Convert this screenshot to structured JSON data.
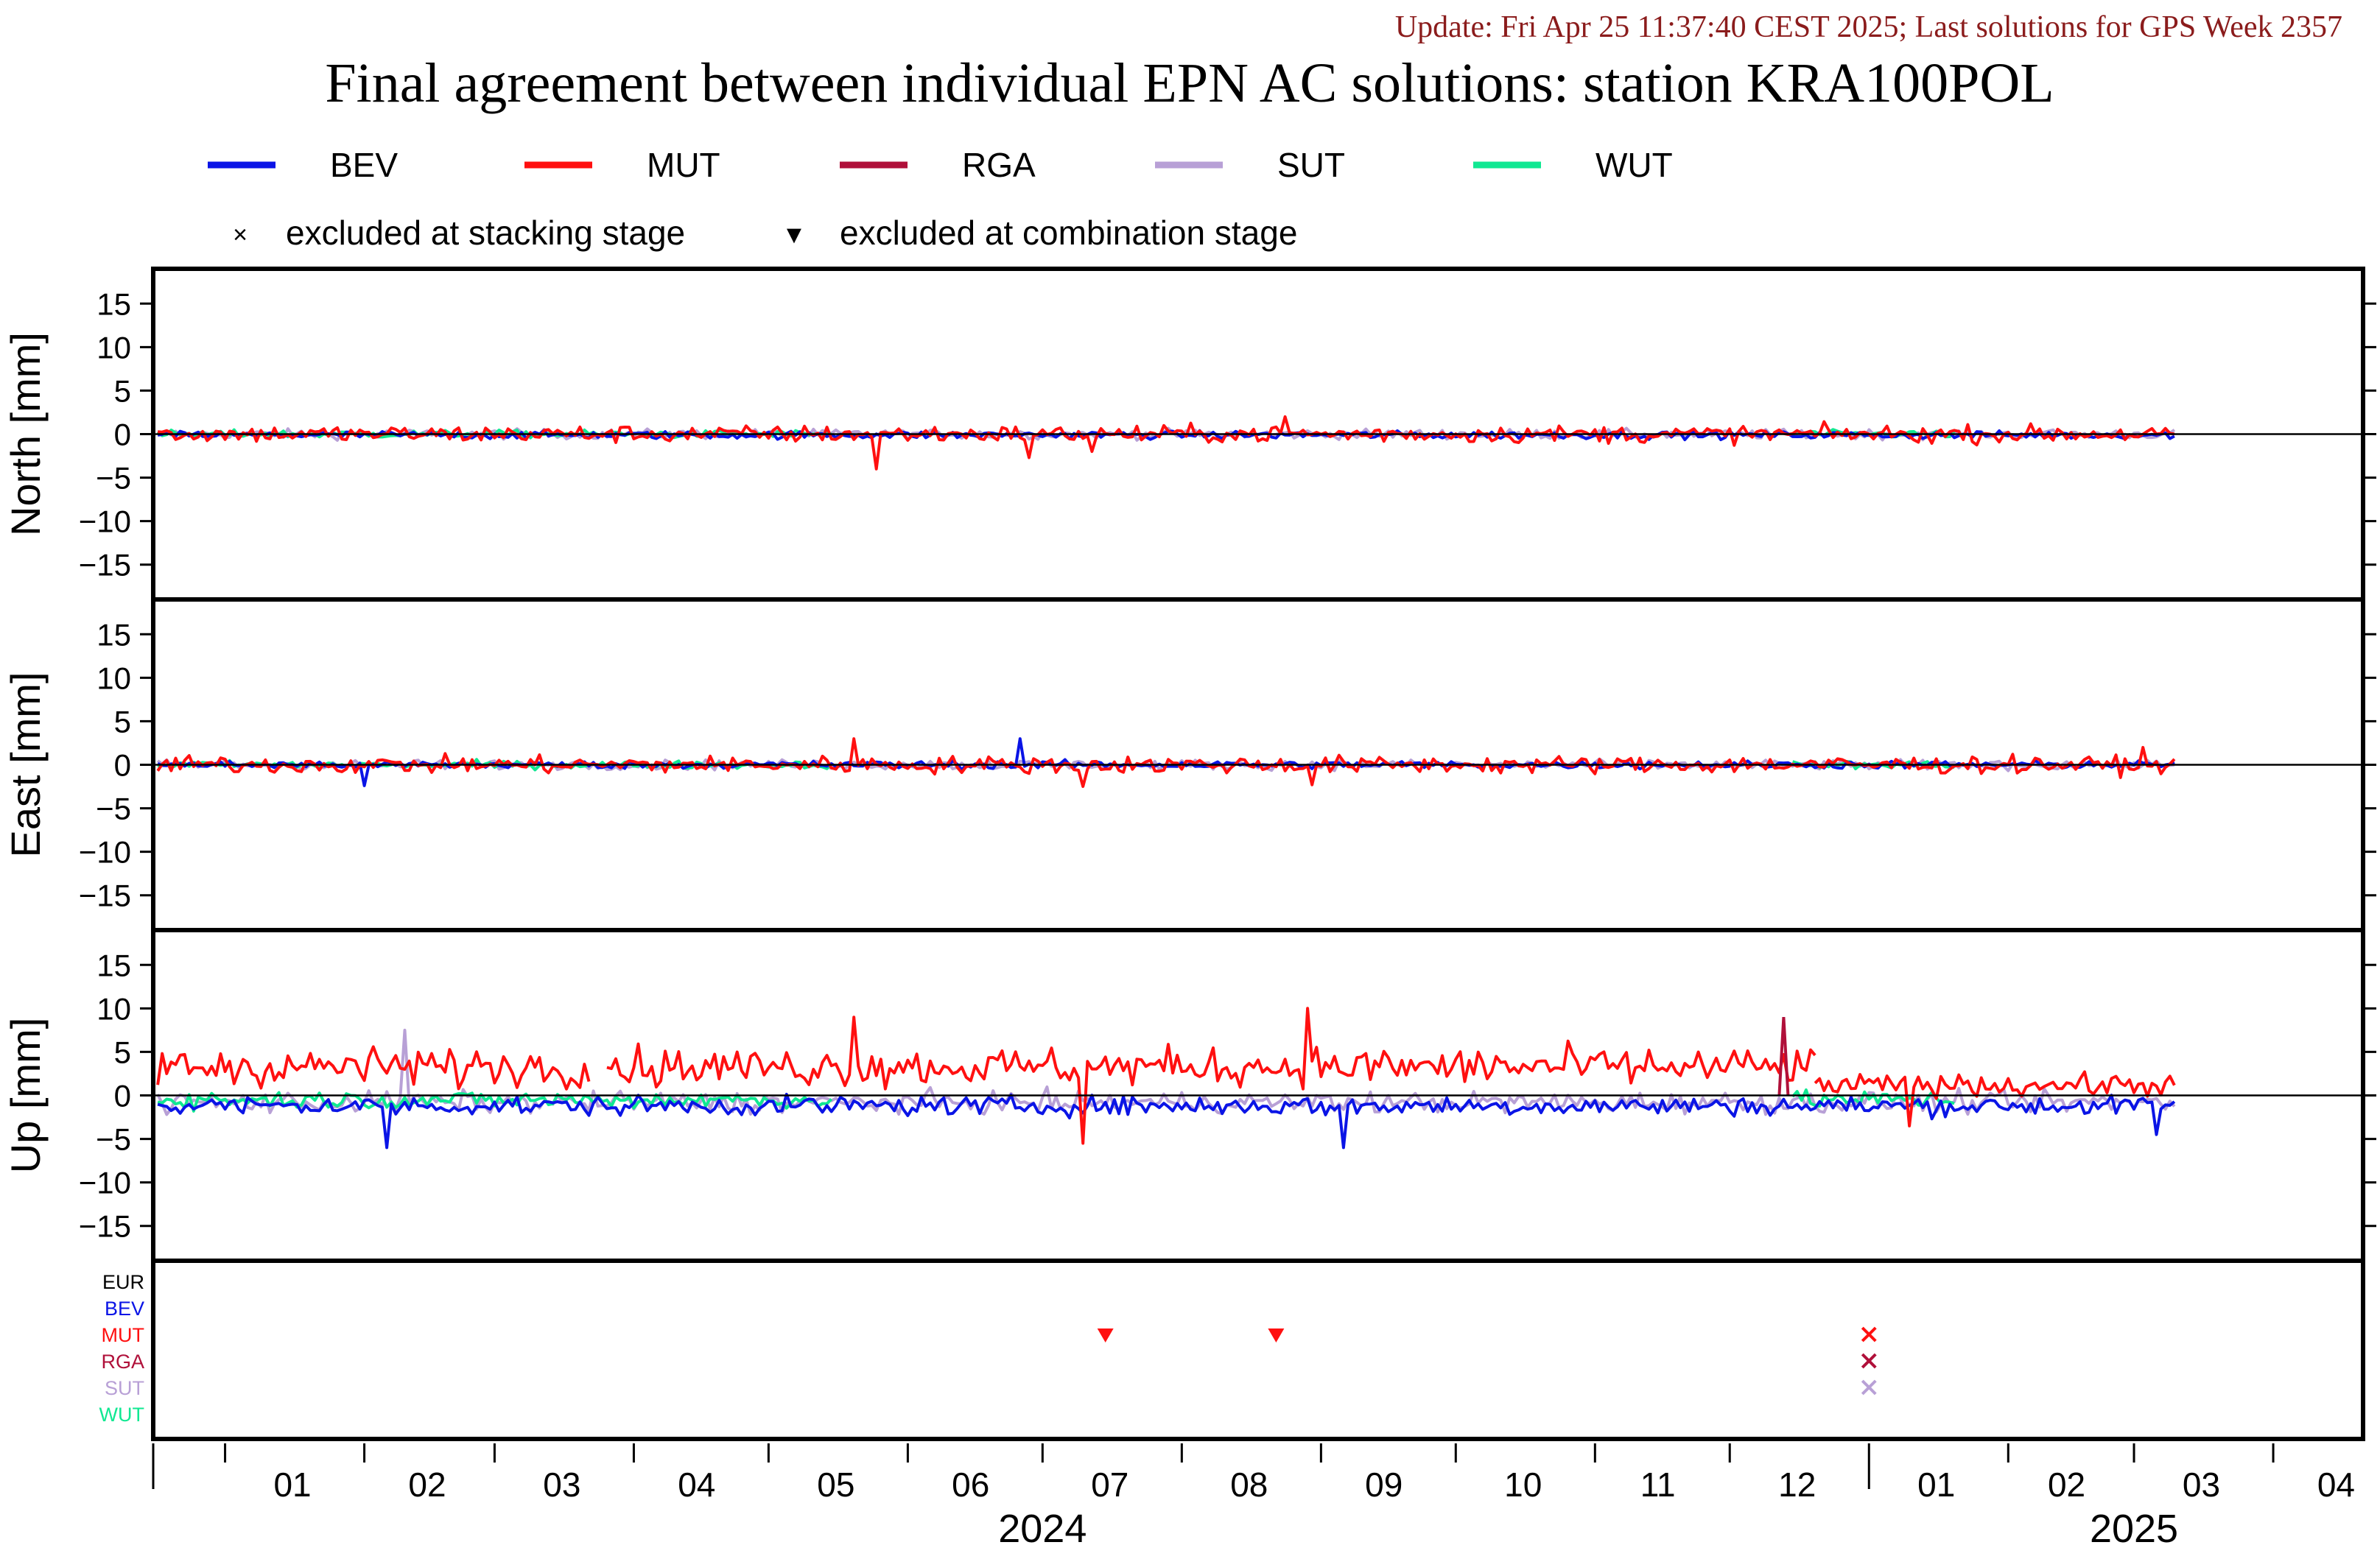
{
  "update_text": "Update: Fri Apr 25 11:37:40 CEST 2025; Last solutions for GPS Week 2357",
  "title": "Final agreement between individual EPN AC solutions: station KRA100POL",
  "legend": {
    "series": [
      {
        "name": "BEV",
        "color": "#0a14e6"
      },
      {
        "name": "MUT",
        "color": "#ff1010"
      },
      {
        "name": "RGA",
        "color": "#b0103a"
      },
      {
        "name": "SUT",
        "color": "#b8a0d6"
      },
      {
        "name": "WUT",
        "color": "#10e892"
      }
    ],
    "markers": [
      {
        "symbol": "×",
        "label": "excluded at stacking stage"
      },
      {
        "symbol": "▼",
        "label": "excluded at combination stage"
      }
    ]
  },
  "colors": {
    "EUR": "#000000",
    "BEV": "#0a14e6",
    "MUT": "#ff1010",
    "RGA": "#b0103a",
    "SUT": "#b8a0d6",
    "WUT": "#10e892"
  },
  "chart_data": {
    "type": "line",
    "x_unit": "month",
    "x_range": [
      "2023-12-16",
      "2025-04-21"
    ],
    "panels": [
      {
        "ylabel": "North [mm]",
        "yticks": [
          15,
          10,
          5,
          0,
          -5,
          -10,
          -15
        ],
        "ylim": [
          -19,
          19
        ],
        "series": [
          {
            "name": "BEV",
            "amplitude": 0.4,
            "offset": -0.1,
            "start": "2023-12-17",
            "end": "2025-03-10"
          },
          {
            "name": "MUT",
            "amplitude": 0.9,
            "offset": 0.0,
            "start": "2023-12-17",
            "end": "2025-03-10"
          },
          {
            "name": "SUT",
            "amplitude": 0.5,
            "offset": 0.0,
            "start": "2023-12-17",
            "end": "2025-03-10"
          },
          {
            "name": "WUT",
            "amplitude": 0.4,
            "offset": 0.0,
            "start": "2023-12-17",
            "end": "2024-05-15"
          },
          {
            "name": "WUT",
            "amplitude": 0.4,
            "offset": 0.0,
            "start": "2024-12-15",
            "end": "2025-01-20"
          }
        ],
        "spikes": [
          {
            "name": "MUT",
            "date": "2024-05-25",
            "value": -4.0
          },
          {
            "name": "MUT",
            "date": "2024-06-28",
            "value": -2.7
          },
          {
            "name": "MUT",
            "date": "2024-07-12",
            "value": -2.0
          },
          {
            "name": "MUT",
            "date": "2024-08-24",
            "value": 2.0
          }
        ]
      },
      {
        "ylabel": "East [mm]",
        "yticks": [
          15,
          10,
          5,
          0,
          -5,
          -10,
          -15
        ],
        "ylim": [
          -19,
          19
        ],
        "series": [
          {
            "name": "BEV",
            "amplitude": 0.4,
            "offset": 0.0,
            "start": "2023-12-17",
            "end": "2025-03-10"
          },
          {
            "name": "MUT",
            "amplitude": 0.9,
            "offset": 0.0,
            "start": "2023-12-17",
            "end": "2025-03-10"
          },
          {
            "name": "SUT",
            "amplitude": 0.5,
            "offset": 0.0,
            "start": "2023-12-17",
            "end": "2025-03-10"
          },
          {
            "name": "WUT",
            "amplitude": 0.4,
            "offset": 0.0,
            "start": "2023-12-17",
            "end": "2024-05-15"
          },
          {
            "name": "WUT",
            "amplitude": 0.4,
            "offset": 0.0,
            "start": "2024-12-15",
            "end": "2025-01-20"
          }
        ],
        "spikes": [
          {
            "name": "BEV",
            "date": "2024-02-01",
            "value": -2.4
          },
          {
            "name": "BEV",
            "date": "2024-06-26",
            "value": 3.0
          },
          {
            "name": "MUT",
            "date": "2024-05-20",
            "value": 3.0
          },
          {
            "name": "MUT",
            "date": "2024-07-10",
            "value": -2.5
          },
          {
            "name": "MUT",
            "date": "2024-08-30",
            "value": -2.3
          },
          {
            "name": "MUT",
            "date": "2025-03-03",
            "value": 2.0
          }
        ]
      },
      {
        "ylabel": "Up [mm]",
        "yticks": [
          15,
          10,
          5,
          0,
          -5,
          -10,
          -15
        ],
        "ylim": [
          -19,
          19
        ],
        "series": [
          {
            "name": "BEV",
            "amplitude": 1.0,
            "offset": -1.2,
            "start": "2023-12-17",
            "end": "2025-03-10"
          },
          {
            "name": "MUT",
            "amplitude": 2.0,
            "offset": 3.3,
            "start": "2023-12-17",
            "end": "2024-03-22"
          },
          {
            "name": "MUT",
            "amplitude": 2.0,
            "offset": 3.3,
            "start": "2024-03-26",
            "end": "2024-12-20"
          },
          {
            "name": "MUT",
            "amplitude": 1.1,
            "offset": 1.2,
            "start": "2024-12-20",
            "end": "2025-03-10"
          },
          {
            "name": "SUT",
            "amplitude": 1.1,
            "offset": -0.8,
            "start": "2023-12-17",
            "end": "2025-03-10"
          },
          {
            "name": "WUT",
            "amplitude": 0.9,
            "offset": -0.5,
            "start": "2023-12-17",
            "end": "2024-05-15"
          },
          {
            "name": "WUT",
            "amplitude": 0.9,
            "offset": -0.5,
            "start": "2024-12-15",
            "end": "2025-01-20"
          }
        ],
        "spikes": [
          {
            "name": "BEV",
            "date": "2024-02-06",
            "value": -6.0
          },
          {
            "name": "SUT",
            "date": "2024-02-10",
            "value": 7.5
          },
          {
            "name": "MUT",
            "date": "2024-05-20",
            "value": 9.0
          },
          {
            "name": "MUT",
            "date": "2024-07-10",
            "value": -5.5
          },
          {
            "name": "MUT",
            "date": "2024-08-29",
            "value": 10.0
          },
          {
            "name": "BEV",
            "date": "2024-09-06",
            "value": -6.0
          },
          {
            "name": "RGA",
            "date": "2024-12-13",
            "value": 9.0
          },
          {
            "name": "MUT",
            "date": "2025-01-10",
            "value": -3.5
          },
          {
            "name": "BEV",
            "date": "2025-03-06",
            "value": -4.5
          }
        ]
      }
    ],
    "exclusion_rows": [
      "EUR",
      "BEV",
      "MUT",
      "RGA",
      "SUT",
      "WUT"
    ],
    "exclusions": [
      {
        "row": "MUT",
        "date": "2024-07-15",
        "type": "combination"
      },
      {
        "row": "MUT",
        "date": "2024-08-22",
        "type": "combination"
      },
      {
        "row": "MUT",
        "date": "2025-01-01",
        "type": "stacking"
      },
      {
        "row": "RGA",
        "date": "2025-01-01",
        "type": "stacking"
      },
      {
        "row": "SUT",
        "date": "2025-01-01",
        "type": "stacking"
      }
    ],
    "month_labels": [
      {
        "label": "01",
        "date": "2024-01-16"
      },
      {
        "label": "02",
        "date": "2024-02-15"
      },
      {
        "label": "03",
        "date": "2024-03-16"
      },
      {
        "label": "04",
        "date": "2024-04-15"
      },
      {
        "label": "05",
        "date": "2024-05-16"
      },
      {
        "label": "06",
        "date": "2024-06-15"
      },
      {
        "label": "07",
        "date": "2024-07-16"
      },
      {
        "label": "08",
        "date": "2024-08-16"
      },
      {
        "label": "09",
        "date": "2024-09-15"
      },
      {
        "label": "10",
        "date": "2024-10-16"
      },
      {
        "label": "11",
        "date": "2024-11-15"
      },
      {
        "label": "12",
        "date": "2024-12-16"
      },
      {
        "label": "01",
        "date": "2025-01-16"
      },
      {
        "label": "02",
        "date": "2025-02-14"
      },
      {
        "label": "03",
        "date": "2025-03-16"
      },
      {
        "label": "04",
        "date": "2025-04-15"
      }
    ],
    "year_labels": [
      {
        "label": "2024",
        "date": "2024-07-01"
      },
      {
        "label": "2025",
        "date": "2025-03-01"
      }
    ],
    "year_boundary": "2025-01-01"
  }
}
